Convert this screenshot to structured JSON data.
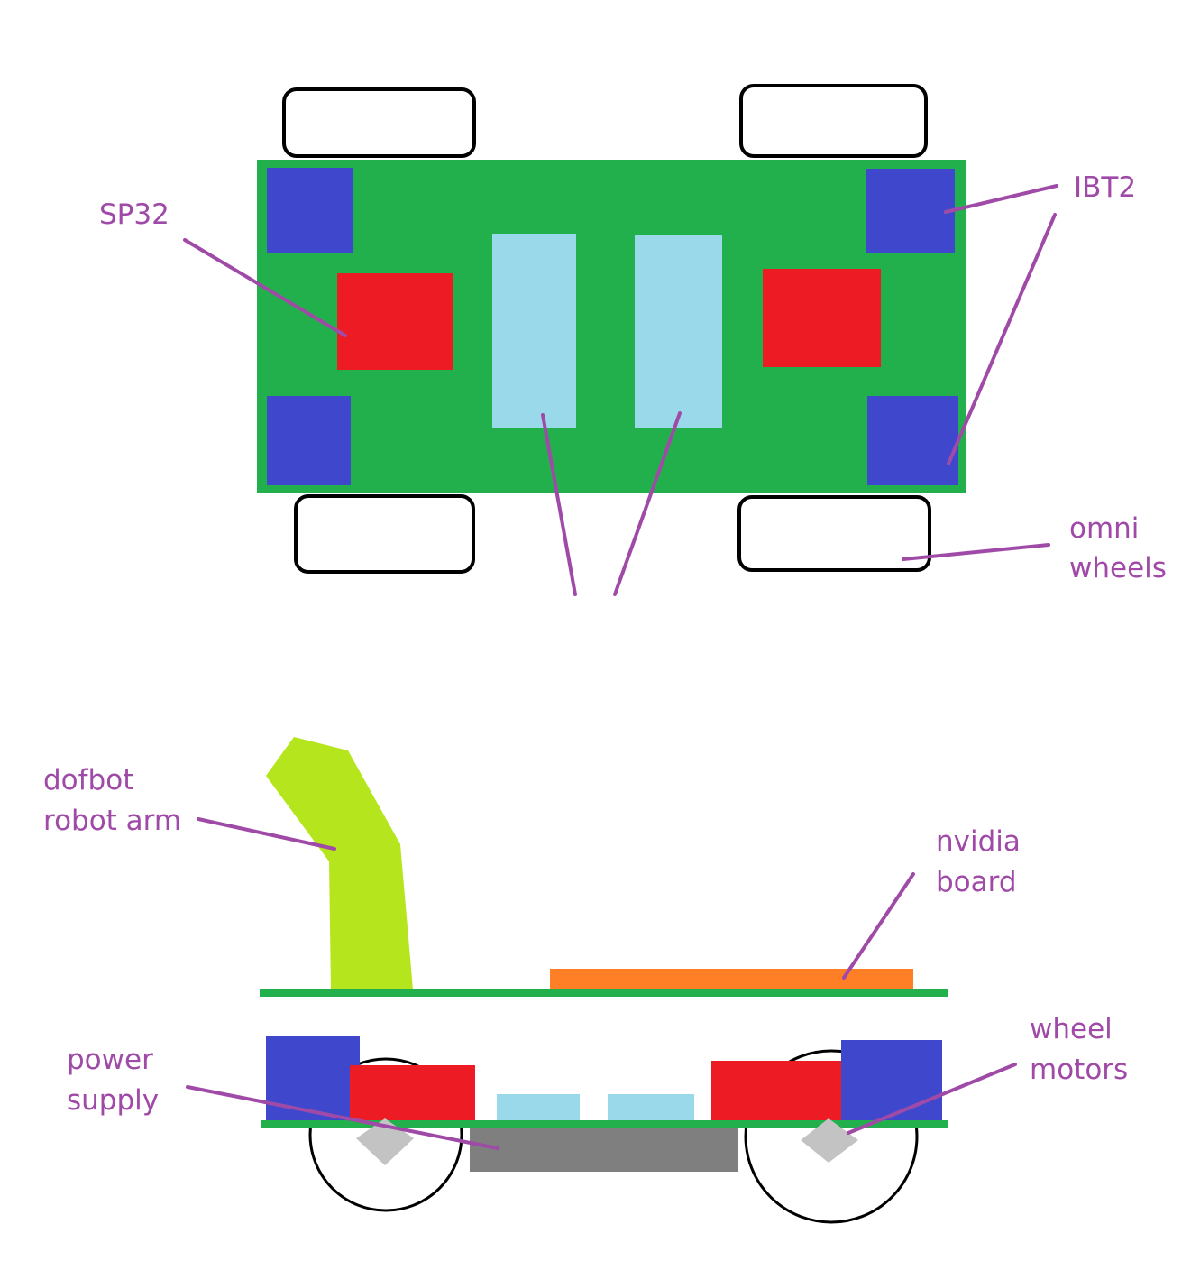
{
  "labels": {
    "sp32": "SP32",
    "ibt2": "IBT2",
    "omni_wheels_line1": "omni",
    "omni_wheels_line2": "wheels",
    "dofbot_line1": "dofbot",
    "dofbot_line2": "robot arm",
    "nvidia_line1": "nvidia",
    "nvidia_line2": "board",
    "power_line1": "power",
    "power_line2": "supply",
    "motors_line1": "wheel",
    "motors_line2": "motors"
  },
  "colors": {
    "chassis": "#22b04c",
    "motor_driver": "#3f48cc",
    "controller": "#ed1c24",
    "battery": "#99d9ea",
    "arm": "#b5e61d",
    "nvidia_board": "#ff7f27",
    "power_supply": "#7f7f7f",
    "motor_hub": "#c3c3c3",
    "label": "#a04aa8"
  }
}
